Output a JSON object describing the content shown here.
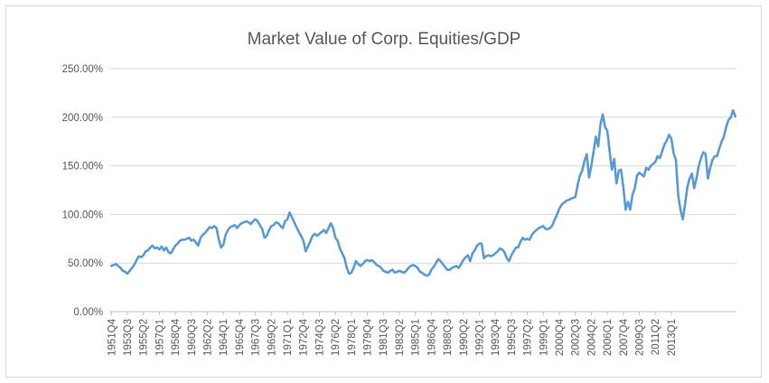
{
  "chart_data": {
    "type": "line",
    "title": "Market Value of Corp. Equities/GDP",
    "xlabel": "",
    "ylabel": "",
    "ylim": [
      0,
      250
    ],
    "y_unit": "%",
    "yticks": [
      "0.00%",
      "50.00%",
      "100.00%",
      "150.00%",
      "200.00%",
      "250.00%"
    ],
    "grid": true,
    "legend": "none",
    "line_color": "#5b9bd5",
    "x_start": "1951Q4",
    "x_tick_labels": [
      "1951Q4",
      "1953Q3",
      "1955Q2",
      "1957Q1",
      "1958Q4",
      "1960Q3",
      "1962Q2",
      "1964Q1",
      "1965Q4",
      "1967Q3",
      "1969Q2",
      "1971Q1",
      "1972Q4",
      "1974Q3",
      "1976Q2",
      "1978Q1",
      "1979Q4",
      "1981Q3",
      "1983Q2",
      "1985Q1",
      "1986Q4",
      "1988Q3",
      "1990Q2",
      "1992Q1",
      "1993Q4",
      "1995Q3",
      "1997Q2",
      "1999Q1",
      "2000Q4",
      "2002Q3",
      "2004Q2",
      "2006Q1",
      "2007Q4",
      "2009Q3",
      "2011Q2",
      "2013Q1"
    ],
    "series": [
      {
        "name": "",
        "values": [
          47,
          48,
          49,
          47,
          45,
          42,
          41,
          39,
          42,
          45,
          48,
          53,
          57,
          56,
          58,
          62,
          63,
          66,
          68,
          65,
          66,
          64,
          67,
          63,
          66,
          61,
          60,
          64,
          68,
          70,
          73,
          74,
          74,
          75,
          76,
          73,
          74,
          71,
          68,
          76,
          79,
          81,
          84,
          87,
          86,
          88,
          86,
          74,
          66,
          69,
          79,
          84,
          87,
          88,
          89,
          86,
          89,
          91,
          92,
          93,
          92,
          90,
          93,
          95,
          93,
          89,
          85,
          76,
          78,
          84,
          88,
          89,
          92,
          91,
          88,
          86,
          93,
          95,
          102,
          97,
          92,
          87,
          82,
          78,
          73,
          62,
          67,
          72,
          78,
          80,
          78,
          80,
          82,
          84,
          81,
          86,
          91,
          86,
          76,
          73,
          65,
          60,
          55,
          45,
          39,
          40,
          45,
          52,
          49,
          47,
          49,
          52,
          53,
          52,
          53,
          51,
          48,
          47,
          45,
          42,
          41,
          40,
          42,
          43,
          40,
          41,
          42,
          41,
          40,
          42,
          45,
          47,
          48,
          47,
          45,
          41,
          40,
          38,
          37,
          38,
          43,
          46,
          50,
          54,
          52,
          49,
          46,
          43,
          43,
          45,
          46,
          47,
          45,
          49,
          53,
          56,
          58,
          52,
          60,
          63,
          68,
          70,
          70,
          55,
          57,
          58,
          57,
          58,
          60,
          62,
          65,
          64,
          61,
          55,
          52,
          58,
          62,
          66,
          66,
          72,
          76,
          74,
          75,
          74,
          79,
          82,
          84,
          86,
          87,
          88,
          85,
          85,
          86,
          89,
          95,
          100,
          106,
          110,
          112,
          114,
          115,
          116,
          117,
          118,
          130,
          140,
          145,
          155,
          162,
          138,
          150,
          165,
          180,
          170,
          193,
          203,
          190,
          186,
          165,
          146,
          157,
          132,
          145,
          146,
          128,
          105,
          113,
          105,
          120,
          127,
          140,
          143,
          141,
          139,
          148,
          146,
          150,
          152,
          154,
          160,
          158,
          165,
          172,
          176,
          182,
          178,
          163,
          156,
          120,
          105,
          95,
          110,
          128,
          137,
          142,
          127,
          137,
          150,
          158,
          164,
          162,
          137,
          148,
          156,
          160,
          160,
          168,
          175,
          180,
          190,
          197,
          200,
          207,
          201
        ]
      }
    ]
  }
}
